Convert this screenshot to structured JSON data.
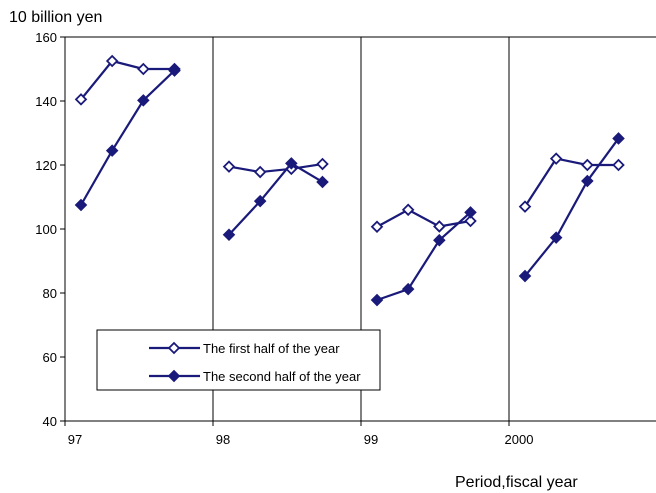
{
  "chart_data": {
    "type": "line",
    "ylabel": "10 billion yen",
    "xlabel": "Period,fiscal year",
    "ylim": [
      40,
      160
    ],
    "yticks": [
      40,
      60,
      80,
      100,
      120,
      140,
      160
    ],
    "grid": "vertical lines at fiscal year boundaries",
    "legend_placement": "lower-left",
    "colors": {
      "series": "#1a1a7a",
      "grid": "#000000"
    },
    "year_groups": [
      "97",
      "98",
      "99",
      "2000"
    ],
    "periods_per_year": 4,
    "series": [
      {
        "name": "The first half of the year",
        "marker": "open-diamond",
        "segments": [
          [
            140.5,
            152.5,
            150.0,
            150.0
          ],
          [
            119.5,
            117.8,
            118.8,
            120.3
          ],
          [
            100.7,
            106.0,
            100.8,
            102.5
          ],
          [
            107.0,
            122.0,
            120.0,
            120.0
          ]
        ]
      },
      {
        "name": "The second half of the year",
        "marker": "filled-diamond",
        "segments": [
          [
            107.5,
            124.5,
            140.2,
            149.5
          ],
          [
            98.2,
            108.7,
            120.5,
            114.7
          ],
          [
            77.8,
            81.2,
            96.5,
            105.2
          ],
          [
            85.3,
            97.3,
            115.0,
            128.3
          ]
        ]
      }
    ]
  }
}
